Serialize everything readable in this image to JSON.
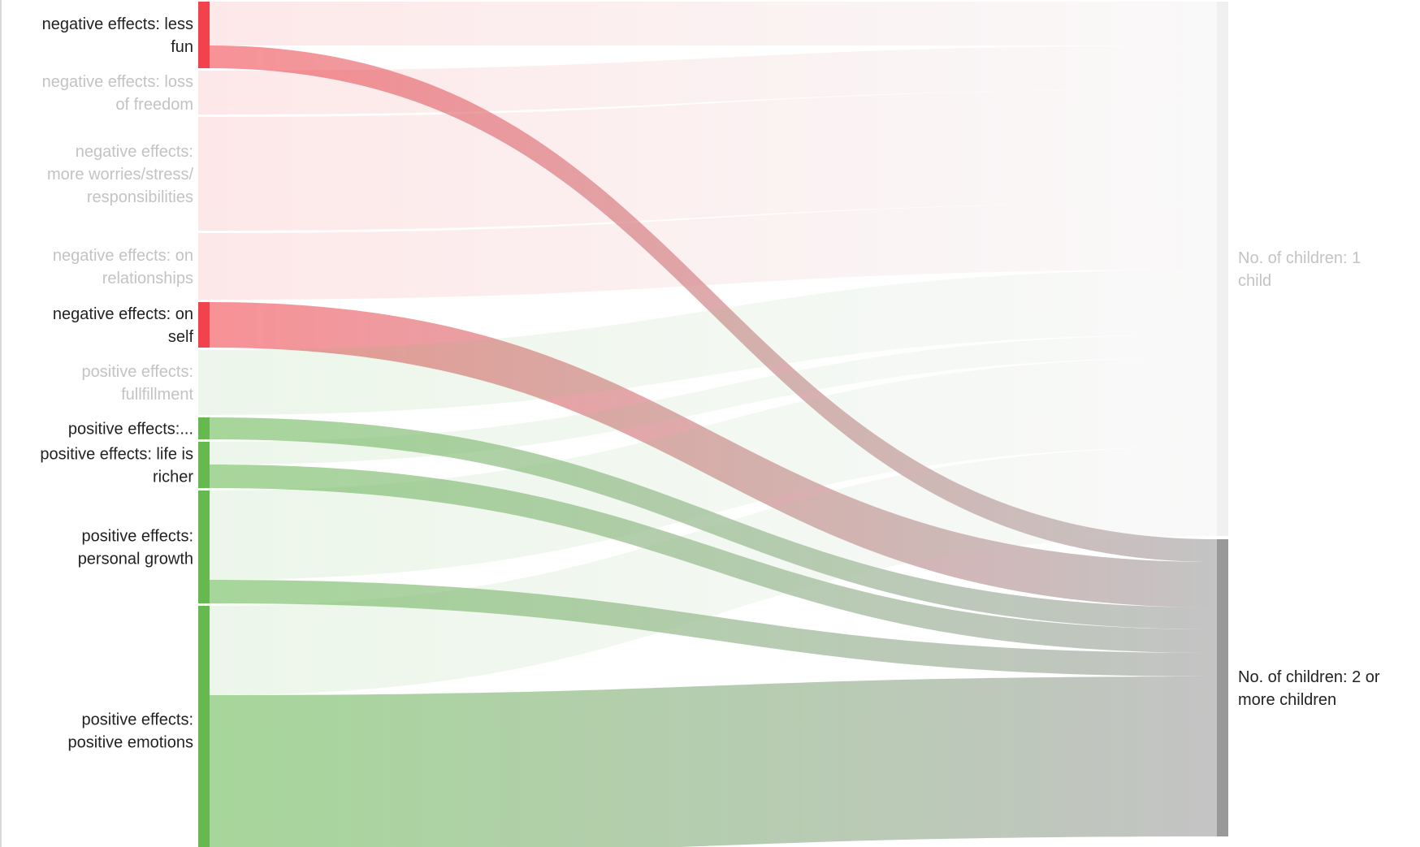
{
  "chart_data": {
    "type": "sankey",
    "sources": [
      {
        "id": "s0",
        "label": [
          "negative effects: less",
          "fun"
        ],
        "color": "#f2424b",
        "highlight": true
      },
      {
        "id": "s1",
        "label": [
          "negative effects: loss",
          "of freedom"
        ],
        "color": "#f2424b",
        "highlight": false
      },
      {
        "id": "s2",
        "label": [
          "negative effects:",
          "more worries/stress/",
          "responsibilities"
        ],
        "color": "#f2424b",
        "highlight": false
      },
      {
        "id": "s3",
        "label": [
          "negative effects: on",
          "relationships"
        ],
        "color": "#f2424b",
        "highlight": false
      },
      {
        "id": "s4",
        "label": [
          "negative effects: on",
          "self"
        ],
        "color": "#f2424b",
        "highlight": true
      },
      {
        "id": "s5",
        "label": [
          "positive effects:",
          "fullfillment"
        ],
        "color": "#66b851",
        "highlight": false
      },
      {
        "id": "s6",
        "label": [
          "positive effects:..."
        ],
        "color": "#66b851",
        "highlight": true
      },
      {
        "id": "s7",
        "label": [
          "positive effects: life is",
          "richer"
        ],
        "color": "#66b851",
        "highlight": true
      },
      {
        "id": "s8",
        "label": [
          "positive effects:",
          "personal growth"
        ],
        "color": "#66b851",
        "highlight": true
      },
      {
        "id": "s9",
        "label": [
          "positive effects:",
          "positive emotions"
        ],
        "color": "#66b851",
        "highlight": true
      }
    ],
    "targets": [
      {
        "id": "t0",
        "label": [
          "No. of children: 1",
          "child"
        ],
        "color": "#f0f0f0",
        "highlight": false
      },
      {
        "id": "t1",
        "label": [
          "No. of children: 2 or",
          "more  children"
        ],
        "color": "#999999",
        "highlight": true
      }
    ],
    "links": [
      {
        "source": "s0",
        "target": "t0",
        "value": 54
      },
      {
        "source": "s0",
        "target": "t1",
        "value": 28
      },
      {
        "source": "s1",
        "target": "t0",
        "value": 54
      },
      {
        "source": "s2",
        "target": "t0",
        "value": 140
      },
      {
        "source": "s3",
        "target": "t0",
        "value": 82
      },
      {
        "source": "s4",
        "target": "t0",
        "value": 0
      },
      {
        "source": "s4",
        "target": "t1",
        "value": 56
      },
      {
        "source": "s5",
        "target": "t0",
        "value": 80
      },
      {
        "source": "s6",
        "target": "t1",
        "value": 27
      },
      {
        "source": "s7",
        "target": "t0",
        "value": 28
      },
      {
        "source": "s7",
        "target": "t1",
        "value": 29
      },
      {
        "source": "s8",
        "target": "t0",
        "value": 110
      },
      {
        "source": "s8",
        "target": "t1",
        "value": 29
      },
      {
        "source": "s9",
        "target": "t0",
        "value": 110
      },
      {
        "source": "s9",
        "target": "t1",
        "value": 197
      }
    ],
    "colors": {
      "negative": "#f2424b",
      "positive": "#66b851",
      "target_one": "#f0f0f0",
      "target_more": "#999999",
      "label_active": "#222222",
      "label_muted": "#c3c3c3"
    }
  }
}
